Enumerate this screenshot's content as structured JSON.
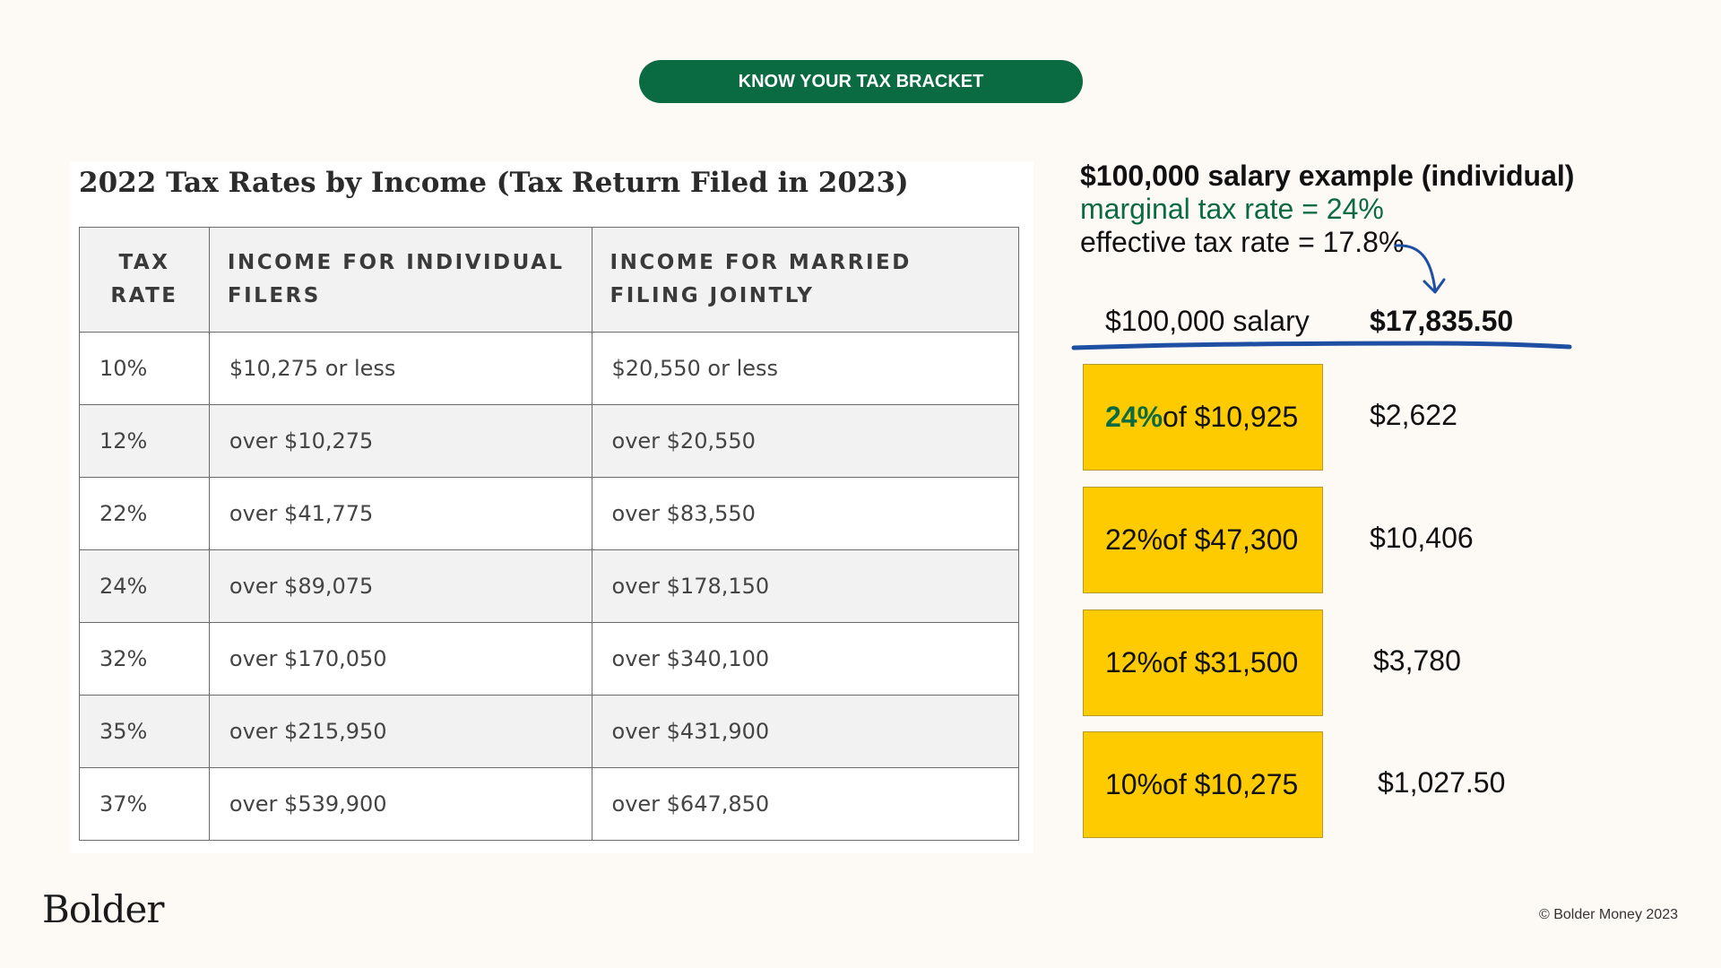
{
  "header": {
    "pill_label": "KNOW YOUR TAX BRACKET"
  },
  "table": {
    "title": "2022 Tax Rates by Income (Tax Return Filed in 2023)",
    "headers": [
      "TAX RATE",
      "INCOME FOR INDIVIDUAL FILERS",
      "INCOME FOR MARRIED FILING JOINTLY"
    ],
    "rows": [
      [
        "10%",
        "$10,275 or less",
        "$20,550 or less"
      ],
      [
        "12%",
        "over $10,275",
        "over $20,550"
      ],
      [
        "22%",
        "over $41,775",
        "over $83,550"
      ],
      [
        "24%",
        "over $89,075",
        "over $178,150"
      ],
      [
        "32%",
        "over $170,050",
        "over $340,100"
      ],
      [
        "35%",
        "over $215,950",
        "over $431,900"
      ],
      [
        "37%",
        "over $539,900",
        "over $647,850"
      ]
    ]
  },
  "example": {
    "title": "$100,000 salary example (individual)",
    "marginal": "marginal tax rate = 24%",
    "effective": "effective tax rate = 17.8%",
    "salary_label": "$100,000 salary",
    "total": "$17,835.50",
    "brackets": [
      {
        "rate": "24%",
        "of_text": " of $10,925",
        "amount": "$2,622"
      },
      {
        "rate": "22%",
        "of_text": " of $47,300",
        "amount": "$10,406"
      },
      {
        "rate": "12%",
        "of_text": " of $31,500",
        "amount": "$3,780"
      },
      {
        "rate": "10%",
        "of_text": " of $10,275",
        "amount": "$1,027.50"
      }
    ]
  },
  "colors": {
    "accent_green": "#0a6b43",
    "highlight_yellow": "#fdcb00",
    "underline_blue": "#1f4fa3",
    "background": "#fdf9f5"
  },
  "footer": {
    "logo": "Bolder",
    "copyright": "© Bolder Money 2023"
  }
}
